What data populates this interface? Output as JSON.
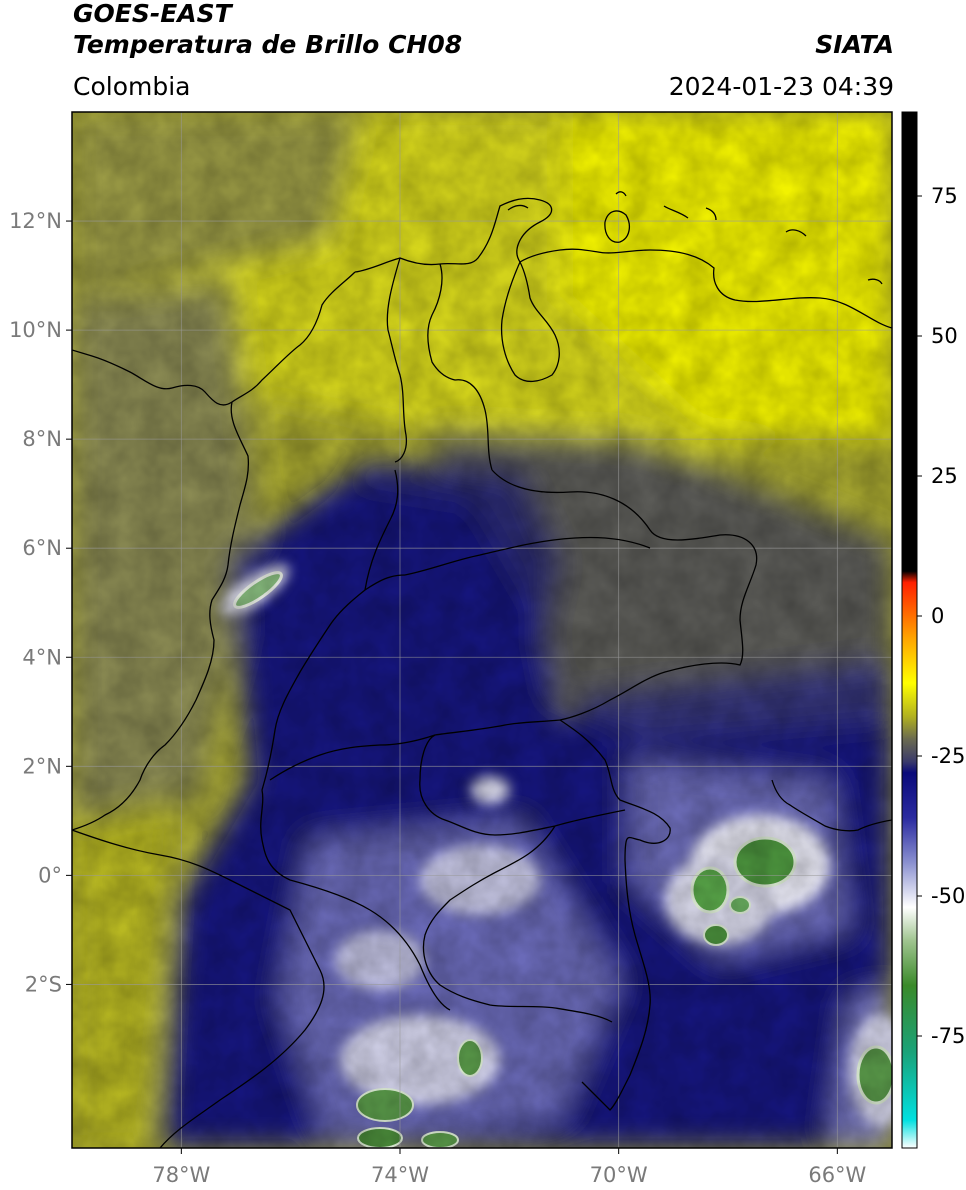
{
  "header": {
    "source": "GOES-EAST",
    "product": "Temperatura de Brillo CH08",
    "organization": "SIATA",
    "region": "Colombia",
    "datetime": "2024-01-23 04:39"
  },
  "map": {
    "extent": {
      "lon_min": -80,
      "lon_max": -65,
      "lat_min": -5,
      "lat_max": 14
    },
    "lat_ticks": [
      {
        "value": 12,
        "label": "12°N"
      },
      {
        "value": 10,
        "label": "10°N"
      },
      {
        "value": 8,
        "label": "8°N"
      },
      {
        "value": 6,
        "label": "6°N"
      },
      {
        "value": 4,
        "label": "4°N"
      },
      {
        "value": 2,
        "label": "2°N"
      },
      {
        "value": 0,
        "label": "0°"
      },
      {
        "value": -2,
        "label": "2°S"
      }
    ],
    "lon_ticks": [
      {
        "value": -78,
        "label": "78°W"
      },
      {
        "value": -74,
        "label": "74°W"
      },
      {
        "value": -70,
        "label": "70°W"
      },
      {
        "value": -66,
        "label": "66°W"
      }
    ],
    "gridlines": true
  },
  "colorbar": {
    "min": -95,
    "max": 90,
    "ticks": [
      {
        "value": 75,
        "label": "75"
      },
      {
        "value": 50,
        "label": "50"
      },
      {
        "value": 25,
        "label": "25"
      },
      {
        "value": 0,
        "label": "0"
      },
      {
        "value": -25,
        "label": "-25"
      },
      {
        "value": -50,
        "label": "-50"
      },
      {
        "value": -75,
        "label": "-75"
      }
    ],
    "stops": [
      {
        "value": -95,
        "color": "#ffffff"
      },
      {
        "value": -90,
        "color": "#00e0e0"
      },
      {
        "value": -78,
        "color": "#1aa37a"
      },
      {
        "value": -66,
        "color": "#3a8a2a"
      },
      {
        "value": -58,
        "color": "#9fc48f"
      },
      {
        "value": -52,
        "color": "#ffffff"
      },
      {
        "value": -44,
        "color": "#8a90d0"
      },
      {
        "value": -36,
        "color": "#2a2aa0"
      },
      {
        "value": -28,
        "color": "#0a0a7a"
      },
      {
        "value": -26,
        "color": "#3a3a6a"
      },
      {
        "value": -22,
        "color": "#6a6a50"
      },
      {
        "value": -18,
        "color": "#b0b020"
      },
      {
        "value": -12,
        "color": "#ffff00"
      },
      {
        "value": -4,
        "color": "#ffa500"
      },
      {
        "value": 6,
        "color": "#ff2000"
      },
      {
        "value": 8,
        "color": "#000000"
      },
      {
        "value": 90,
        "color": "#000000"
      }
    ]
  }
}
